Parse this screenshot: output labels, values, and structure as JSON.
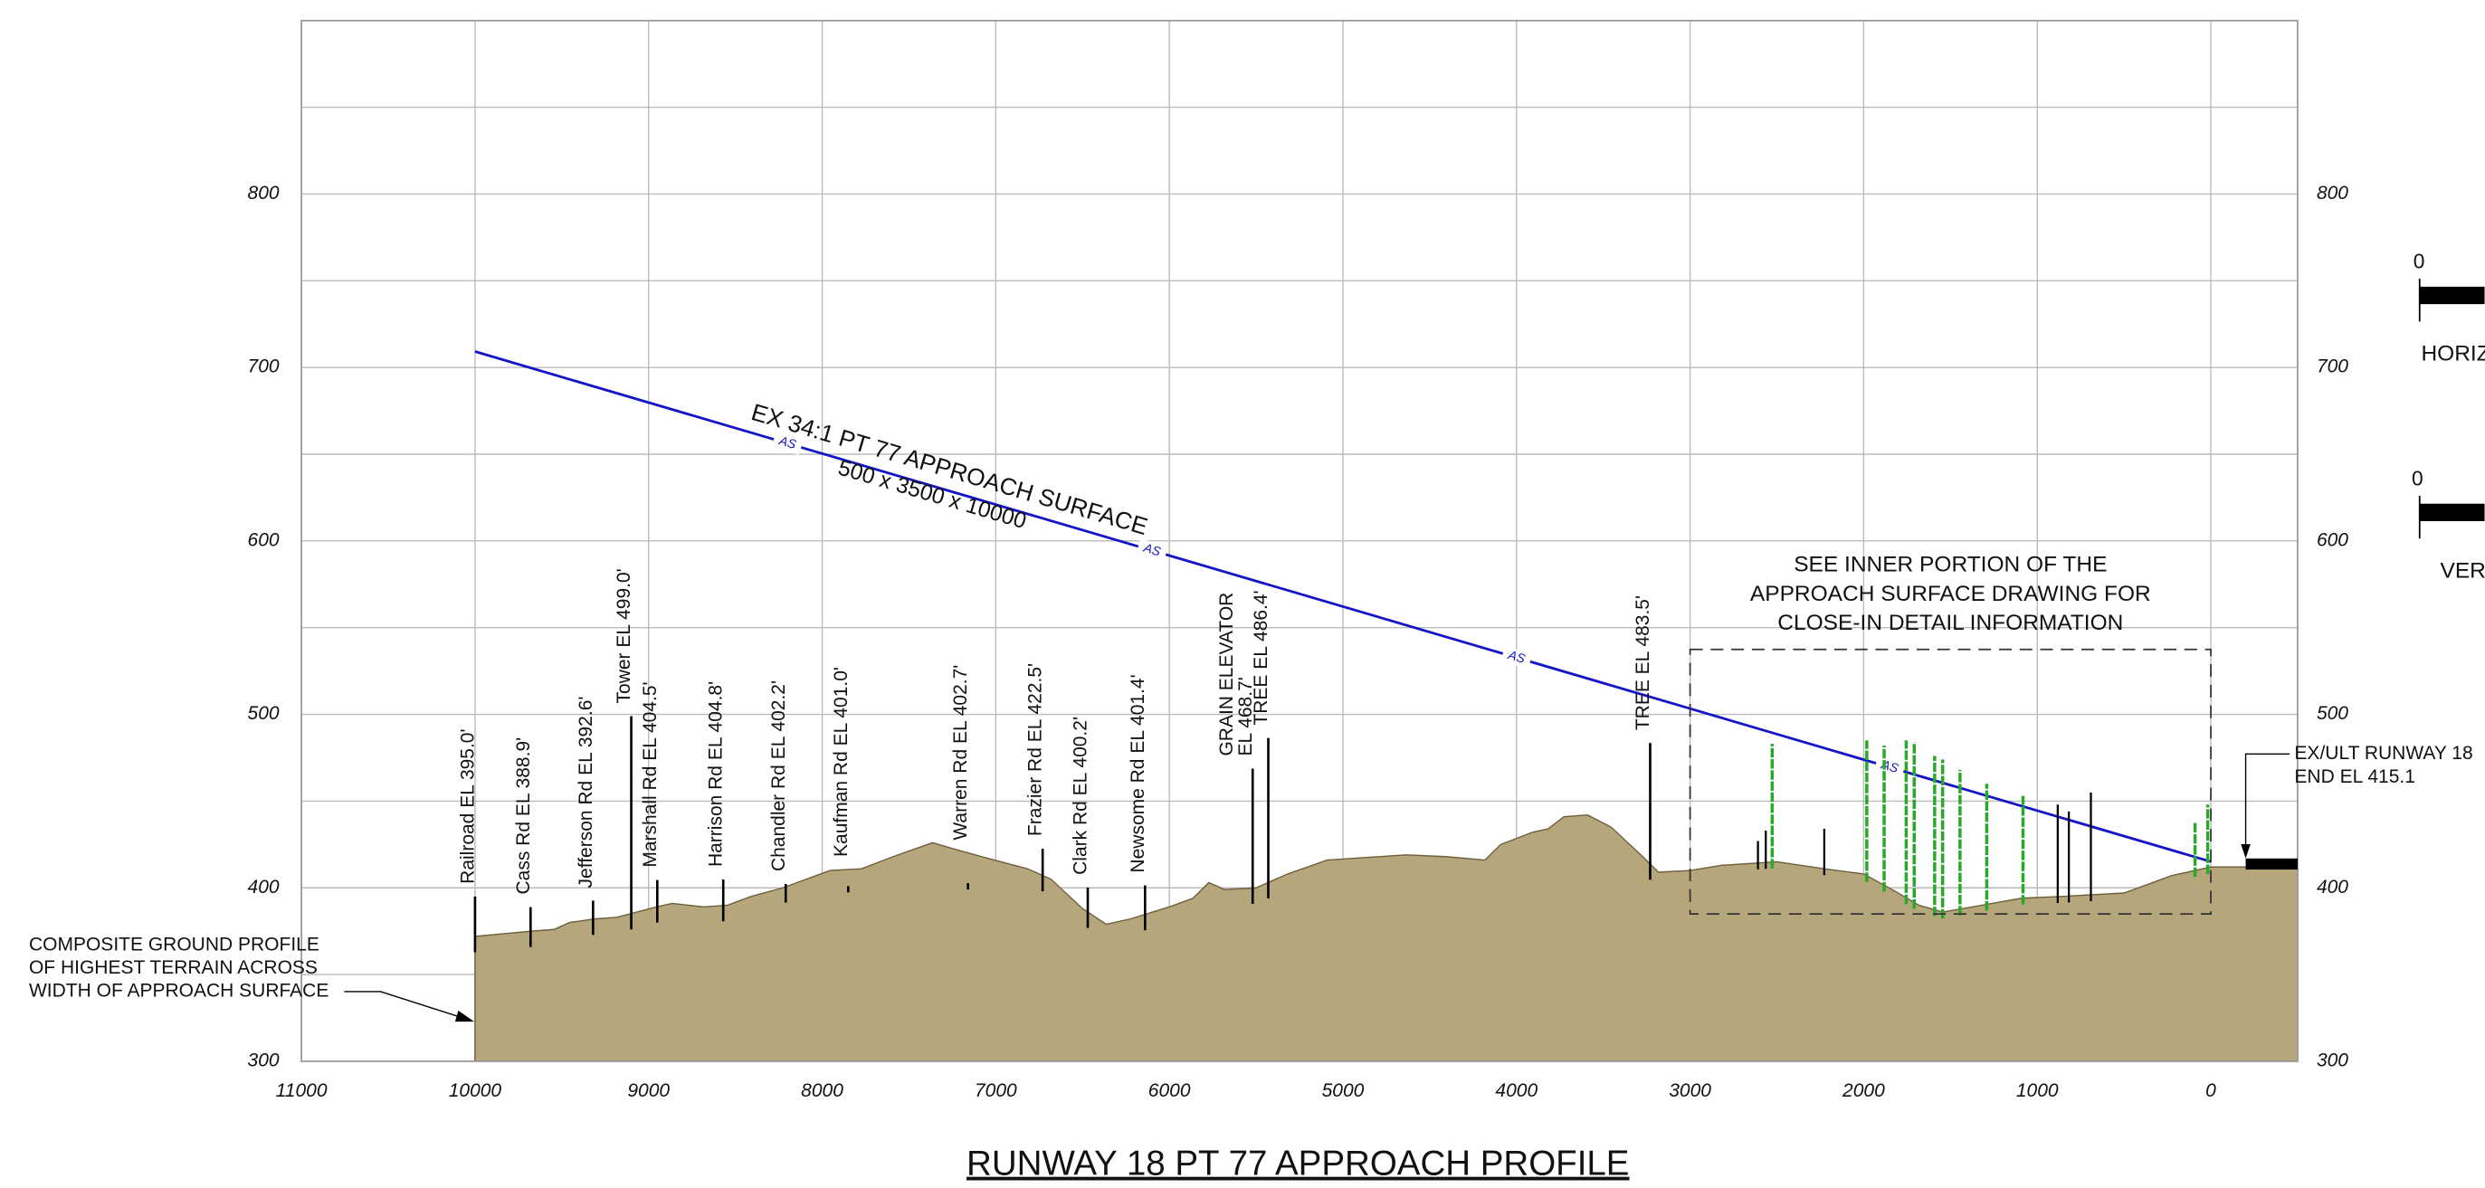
{
  "chart_data": {
    "type": "area",
    "title": "RUNWAY 18 PT 77 APPROACH PROFILE",
    "xlim": [
      11000,
      -500
    ],
    "xticks": [
      11000,
      10000,
      9000,
      8000,
      7000,
      6000,
      5000,
      4000,
      3000,
      2000,
      1000,
      0
    ],
    "ylim": [
      300,
      900
    ],
    "yticks": [
      300,
      400,
      500,
      600,
      700,
      800
    ],
    "y_minor_ticks": [
      350,
      450,
      550,
      650,
      750,
      850
    ],
    "grid": true,
    "ground": {
      "color": "#b5a67c",
      "x": [
        10000,
        9680,
        9545,
        9455,
        9318,
        9182,
        8955,
        8864,
        8682,
        8545,
        8410,
        8227,
        8091,
        7955,
        7773,
        7591,
        7364,
        7227,
        7045,
        6818,
        6682,
        6500,
        6364,
        6227,
        6000,
        5864,
        5773,
        5682,
        5500,
        5318,
        5091,
        4636,
        4409,
        4182,
        4091,
        3909,
        3818,
        3727,
        3591,
        3455,
        3273,
        3182,
        3000,
        2818,
        2500,
        2227,
        2000,
        1818,
        1682,
        1545,
        1318,
        1091,
        864,
        500,
        227,
        0,
        -500
      ],
      "values": [
        372,
        375,
        376,
        380,
        382,
        383,
        389,
        391,
        389,
        390,
        395,
        400,
        405,
        410,
        411,
        418,
        426,
        422,
        417,
        411,
        405,
        388,
        379,
        382,
        389,
        394,
        403,
        399,
        400,
        408,
        416,
        419,
        418,
        416,
        425,
        432,
        434,
        441,
        442,
        435,
        418,
        409,
        410,
        413,
        415,
        411,
        408,
        398,
        390,
        386,
        390,
        394,
        395,
        397,
        407,
        412,
        412
      ]
    },
    "surface": {
      "color": "#1414c8",
      "x": [
        10000,
        0
      ],
      "values": [
        709.2,
        415.1
      ]
    },
    "obstructions": {
      "labels": [
        [
          "Railroad EL 395.0'"
        ],
        [
          "Cass Rd EL 388.9'"
        ],
        [
          "Jefferson Rd EL 392.6'"
        ],
        [
          "Tower EL 499.0'"
        ],
        [
          "Marshall Rd EL 404.5'"
        ],
        [
          "Harrison Rd EL 404.8'"
        ],
        [
          "Chandler Rd EL 402.2'"
        ],
        [
          "Kaufman Rd EL 401.0'"
        ],
        [
          "Warren Rd EL 402.7'"
        ],
        [
          "Frazier Rd EL 422.5'"
        ],
        [
          "Clark Rd EL 400.2'"
        ],
        [
          "Newsome Rd EL 401.4'"
        ],
        [
          "GRAIN ELEVATOR",
          "EL 468.7'"
        ],
        [
          "TREE EL 486.4'"
        ],
        [
          "TREE EL 483.5'"
        ]
      ],
      "x": [
        10000,
        9680,
        9320,
        9100,
        8950,
        8570,
        8210,
        7850,
        7160,
        6730,
        6470,
        6140,
        5520,
        5430,
        3230
      ],
      "values": [
        395.0,
        388.9,
        392.6,
        499.0,
        404.5,
        404.8,
        402.2,
        401.0,
        402.7,
        422.5,
        400.2,
        401.4,
        468.7,
        486.4,
        483.5
      ]
    },
    "inner_obstructions": {
      "x": [
        2609,
        2564,
        2227,
        882,
        818,
        691
      ],
      "values": [
        427,
        433,
        434,
        448,
        444,
        455
      ]
    },
    "trees": {
      "color": "#2aa82a",
      "x": [
        2527,
        1982,
        1882,
        1755,
        1709,
        1591,
        1545,
        1445,
        1291,
        1082,
        91,
        18
      ],
      "values": [
        483,
        485,
        482,
        485,
        484,
        476,
        474,
        468,
        460,
        453,
        438,
        448
      ]
    },
    "annotations": {
      "surface_label": "EX 34:1 PT 77 APPROACH SURFACE",
      "surface_size": "500 x 3500 x 10000",
      "surface_marker": "AS",
      "inner_note": [
        "SEE INNER PORTION OF THE",
        "APPROACH SURFACE DRAWING FOR",
        "CLOSE-IN DETAIL INFORMATION"
      ],
      "ground_note": [
        "COMPOSITE GROUND PROFILE",
        "OF HIGHEST TERRAIN ACROSS",
        "WIDTH OF APPROACH SURFACE"
      ],
      "runway_note": [
        "EX/ULT RUNWAY 18",
        "END EL 415.1"
      ]
    },
    "scale_bars": {
      "zero": "0",
      "horizontal": "HORIZ",
      "vertical": "VERT"
    }
  }
}
